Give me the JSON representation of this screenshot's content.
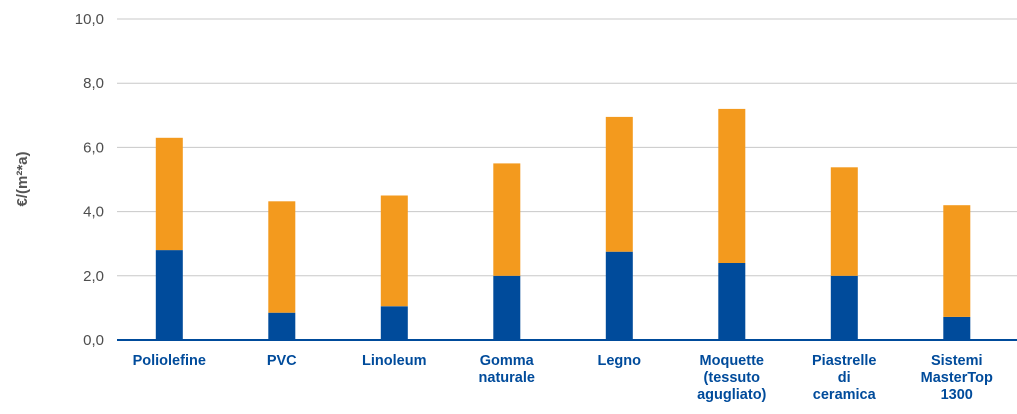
{
  "chart_data": {
    "type": "bar",
    "stacked": true,
    "title": "",
    "xlabel": "",
    "ylabel": "€/(m²*a)",
    "ylim": [
      0,
      10
    ],
    "yticks": [
      "0,0",
      "2,0",
      "4,0",
      "6,0",
      "8,0",
      "10,0"
    ],
    "grid": true,
    "legend": "none",
    "categories": [
      [
        "Poliolefine"
      ],
      [
        "PVC"
      ],
      [
        "Linoleum"
      ],
      [
        "Gomma",
        "naturale"
      ],
      [
        "Legno"
      ],
      [
        "Moquette",
        "(tessuto",
        "agugliato)"
      ],
      [
        "Piastrelle",
        "di",
        "ceramica"
      ],
      [
        "Sistemi",
        "MasterTop",
        "1300"
      ]
    ],
    "series": [
      {
        "values": [
          2.8,
          0.85,
          1.05,
          2.0,
          2.75,
          2.4,
          2.0,
          0.72
        ],
        "color": "#004b9b"
      },
      {
        "values": [
          3.5,
          3.47,
          3.45,
          3.5,
          4.2,
          4.8,
          3.38,
          3.48
        ],
        "color": "#f39a1e"
      }
    ]
  }
}
